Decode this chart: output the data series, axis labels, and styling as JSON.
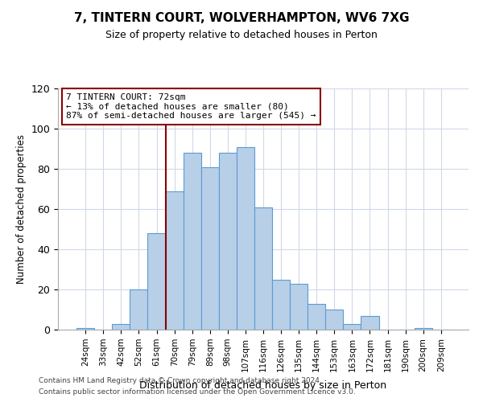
{
  "title": "7, TINTERN COURT, WOLVERHAMPTON, WV6 7XG",
  "subtitle": "Size of property relative to detached houses in Perton",
  "xlabel": "Distribution of detached houses by size in Perton",
  "ylabel": "Number of detached properties",
  "footer_lines": [
    "Contains HM Land Registry data © Crown copyright and database right 2024.",
    "Contains public sector information licensed under the Open Government Licence v3.0."
  ],
  "bin_labels": [
    "24sqm",
    "33sqm",
    "42sqm",
    "52sqm",
    "61sqm",
    "70sqm",
    "79sqm",
    "89sqm",
    "98sqm",
    "107sqm",
    "116sqm",
    "126sqm",
    "135sqm",
    "144sqm",
    "153sqm",
    "163sqm",
    "172sqm",
    "181sqm",
    "190sqm",
    "200sqm",
    "209sqm"
  ],
  "bin_values": [
    1,
    0,
    3,
    20,
    48,
    69,
    88,
    81,
    88,
    91,
    61,
    25,
    23,
    13,
    10,
    3,
    7,
    0,
    0,
    1,
    0
  ],
  "bar_color": "#b8cfe8",
  "bar_edge_color": "#5b9bd5",
  "marker_line_x_label": "70sqm",
  "marker_line_color": "#8b0000",
  "annotation_text": "7 TINTERN COURT: 72sqm\n← 13% of detached houses are smaller (80)\n87% of semi-detached houses are larger (545) →",
  "annotation_box_color": "#ffffff",
  "annotation_box_edge_color": "#8b0000",
  "ylim": [
    0,
    120
  ],
  "yticks": [
    0,
    20,
    40,
    60,
    80,
    100,
    120
  ],
  "background_color": "#ffffff",
  "grid_color": "#d0d8e8"
}
